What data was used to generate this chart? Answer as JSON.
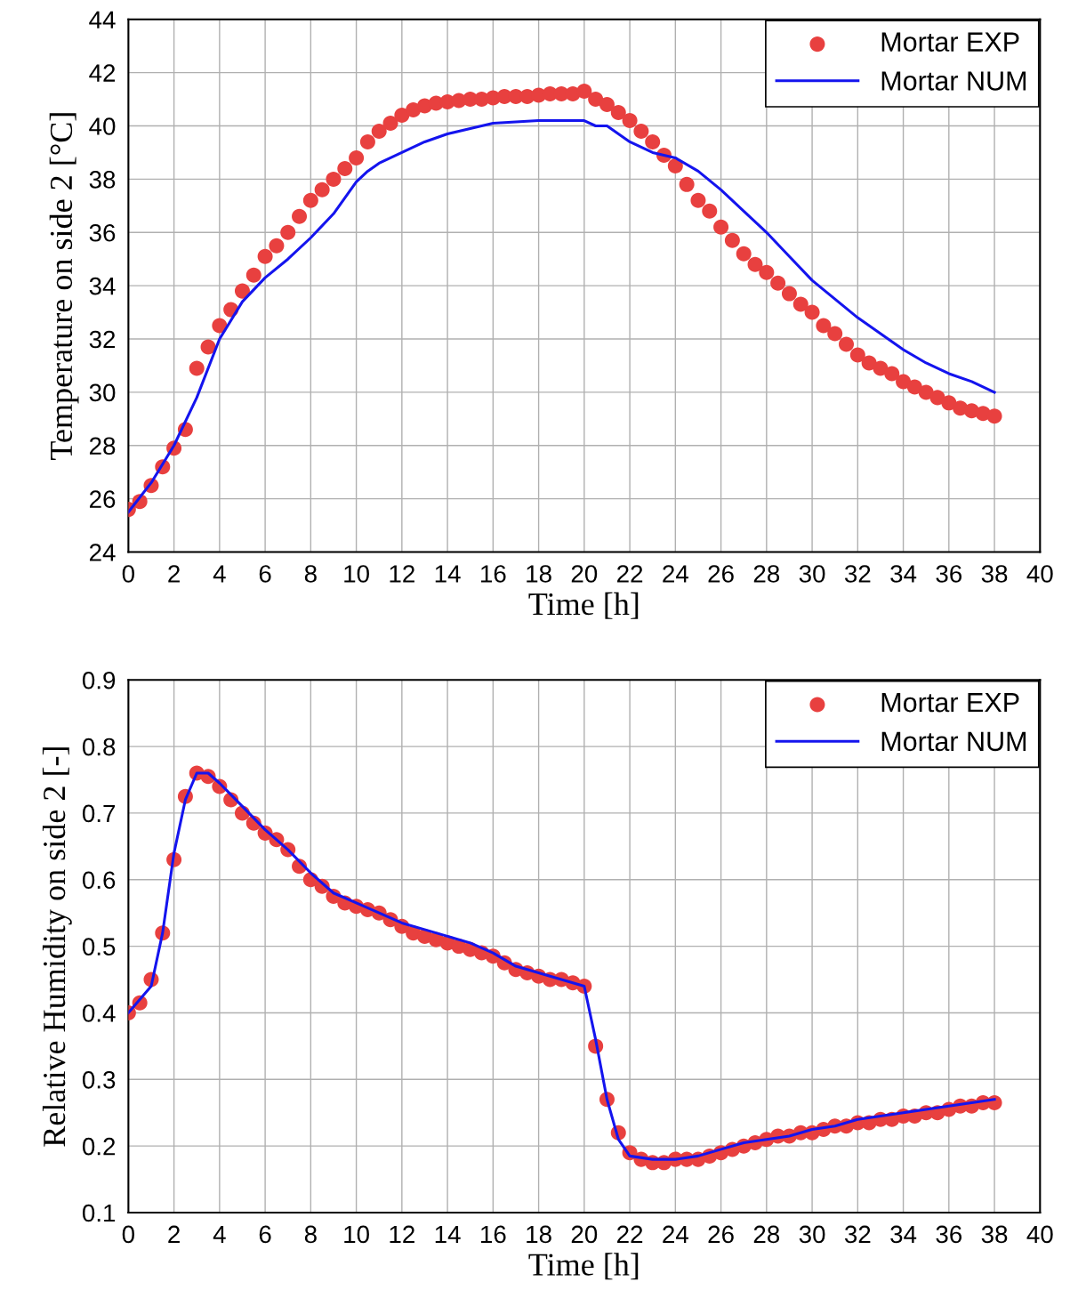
{
  "chart_data": [
    {
      "type": "line",
      "xlabel": "Time [h]",
      "ylabel": "Temperature on side 2 [°C]",
      "xlim": [
        0,
        40
      ],
      "xticks": [
        0,
        2,
        4,
        6,
        8,
        10,
        12,
        14,
        16,
        18,
        20,
        22,
        24,
        26,
        28,
        30,
        32,
        34,
        36,
        38,
        40
      ],
      "ylim": [
        24,
        44
      ],
      "yticks": [
        24,
        26,
        28,
        30,
        32,
        34,
        36,
        38,
        40,
        42,
        44
      ],
      "grid": true,
      "legend": "top right",
      "series": [
        {
          "name": "Mortar EXP",
          "type": "scatter",
          "marker": "circle",
          "color": "#e8403f",
          "x": [
            0,
            0.5,
            1,
            1.5,
            2,
            2.5,
            3,
            3.5,
            4,
            4.5,
            5,
            5.5,
            6,
            6.5,
            7,
            7.5,
            8,
            8.5,
            9,
            9.5,
            10,
            10.5,
            11,
            11.5,
            12,
            12.5,
            13,
            13.5,
            14,
            14.5,
            15,
            15.5,
            16,
            16.5,
            17,
            17.5,
            18,
            18.5,
            19,
            19.5,
            20,
            20.5,
            21,
            21.5,
            22,
            22.5,
            23,
            23.5,
            24,
            24.5,
            25,
            25.5,
            26,
            26.5,
            27,
            27.5,
            28,
            28.5,
            29,
            29.5,
            30,
            30.5,
            31,
            31.5,
            32,
            32.5,
            33,
            33.5,
            34,
            34.5,
            35,
            35.5,
            36,
            36.5,
            37,
            37.5,
            38
          ],
          "values": [
            25.6,
            25.9,
            26.5,
            27.2,
            27.9,
            28.6,
            30.9,
            31.7,
            32.5,
            33.1,
            33.8,
            34.4,
            35.1,
            35.5,
            36.0,
            36.6,
            37.2,
            37.6,
            38.0,
            38.4,
            38.8,
            39.4,
            39.8,
            40.1,
            40.4,
            40.6,
            40.75,
            40.85,
            40.9,
            40.95,
            41.0,
            41.0,
            41.05,
            41.1,
            41.1,
            41.1,
            41.15,
            41.2,
            41.2,
            41.2,
            41.3,
            41.0,
            40.8,
            40.5,
            40.2,
            39.8,
            39.4,
            38.9,
            38.5,
            37.8,
            37.2,
            36.8,
            36.2,
            35.7,
            35.2,
            34.8,
            34.5,
            34.1,
            33.7,
            33.3,
            33.0,
            32.5,
            32.2,
            31.8,
            31.4,
            31.1,
            30.9,
            30.7,
            30.4,
            30.2,
            30.0,
            29.8,
            29.6,
            29.4,
            29.3,
            29.2,
            29.1
          ]
        },
        {
          "name": "Mortar NUM",
          "type": "line",
          "marker": "none",
          "line_style": "solid",
          "color": "#1414ee",
          "x": [
            0,
            1,
            2,
            3,
            4,
            5,
            6,
            7,
            8,
            9,
            10,
            10.5,
            11,
            12,
            13,
            14,
            15,
            16,
            17,
            18,
            19,
            20,
            20.5,
            21,
            22,
            23,
            24,
            25,
            26,
            27,
            28,
            29,
            30,
            31,
            32,
            33,
            34,
            35,
            36,
            37,
            38
          ],
          "values": [
            25.5,
            26.6,
            28.0,
            29.8,
            32.0,
            33.4,
            34.3,
            35.0,
            35.8,
            36.7,
            37.9,
            38.3,
            38.6,
            39.0,
            39.4,
            39.7,
            39.9,
            40.1,
            40.15,
            40.2,
            40.2,
            40.2,
            40.0,
            40.0,
            39.4,
            39.0,
            38.8,
            38.3,
            37.6,
            36.8,
            36.0,
            35.1,
            34.2,
            33.5,
            32.8,
            32.2,
            31.6,
            31.1,
            30.7,
            30.4,
            30.0
          ]
        }
      ]
    },
    {
      "type": "line",
      "xlabel": "Time [h]",
      "ylabel": "Relative Humidity on side 2 [-]",
      "xlim": [
        0,
        40
      ],
      "xticks": [
        0,
        2,
        4,
        6,
        8,
        10,
        12,
        14,
        16,
        18,
        20,
        22,
        24,
        26,
        28,
        30,
        32,
        34,
        36,
        38,
        40
      ],
      "ylim": [
        0.1,
        0.9
      ],
      "yticks": [
        0.1,
        0.2,
        0.3,
        0.4,
        0.5,
        0.6,
        0.7,
        0.8,
        0.9
      ],
      "grid": true,
      "legend": "top right",
      "series": [
        {
          "name": "Mortar EXP",
          "type": "scatter",
          "marker": "circle",
          "color": "#e8403f",
          "x": [
            0,
            0.5,
            1,
            1.5,
            2,
            2.5,
            3,
            3.5,
            4,
            4.5,
            5,
            5.5,
            6,
            6.5,
            7,
            7.5,
            8,
            8.5,
            9,
            9.5,
            10,
            10.5,
            11,
            11.5,
            12,
            12.5,
            13,
            13.5,
            14,
            14.5,
            15,
            15.5,
            16,
            16.5,
            17,
            17.5,
            18,
            18.5,
            19,
            19.5,
            20,
            20.5,
            21,
            21.5,
            22,
            22.5,
            23,
            23.5,
            24,
            24.5,
            25,
            25.5,
            26,
            26.5,
            27,
            27.5,
            28,
            28.5,
            29,
            29.5,
            30,
            30.5,
            31,
            31.5,
            32,
            32.5,
            33,
            33.5,
            34,
            34.5,
            35,
            35.5,
            36,
            36.5,
            37,
            37.5,
            38
          ],
          "values": [
            0.4,
            0.415,
            0.45,
            0.52,
            0.63,
            0.725,
            0.76,
            0.755,
            0.74,
            0.72,
            0.7,
            0.685,
            0.67,
            0.66,
            0.645,
            0.62,
            0.6,
            0.59,
            0.575,
            0.565,
            0.56,
            0.555,
            0.55,
            0.54,
            0.53,
            0.52,
            0.515,
            0.51,
            0.505,
            0.5,
            0.495,
            0.49,
            0.485,
            0.475,
            0.465,
            0.46,
            0.455,
            0.45,
            0.45,
            0.445,
            0.44,
            0.35,
            0.27,
            0.22,
            0.19,
            0.18,
            0.175,
            0.175,
            0.18,
            0.18,
            0.18,
            0.185,
            0.19,
            0.195,
            0.2,
            0.205,
            0.21,
            0.215,
            0.215,
            0.22,
            0.22,
            0.225,
            0.23,
            0.23,
            0.235,
            0.235,
            0.24,
            0.24,
            0.245,
            0.245,
            0.25,
            0.25,
            0.255,
            0.26,
            0.26,
            0.265,
            0.265
          ]
        },
        {
          "name": "Mortar NUM",
          "type": "line",
          "marker": "none",
          "line_style": "solid",
          "color": "#1414ee",
          "x": [
            0,
            1,
            1.5,
            2,
            2.5,
            3,
            3.5,
            4,
            5,
            6,
            7,
            8,
            9,
            10,
            11,
            12,
            13,
            14,
            15,
            16,
            17,
            18,
            19,
            20,
            20.5,
            21,
            21.5,
            22,
            23,
            24,
            25,
            26,
            27,
            28,
            29,
            30,
            31,
            32,
            33,
            34,
            35,
            36,
            37,
            38
          ],
          "values": [
            0.4,
            0.44,
            0.52,
            0.64,
            0.72,
            0.76,
            0.76,
            0.745,
            0.71,
            0.675,
            0.645,
            0.61,
            0.58,
            0.565,
            0.55,
            0.535,
            0.525,
            0.515,
            0.505,
            0.49,
            0.47,
            0.46,
            0.45,
            0.44,
            0.36,
            0.27,
            0.21,
            0.185,
            0.18,
            0.18,
            0.185,
            0.195,
            0.205,
            0.21,
            0.215,
            0.225,
            0.23,
            0.24,
            0.245,
            0.25,
            0.255,
            0.26,
            0.265,
            0.27
          ]
        }
      ]
    }
  ]
}
